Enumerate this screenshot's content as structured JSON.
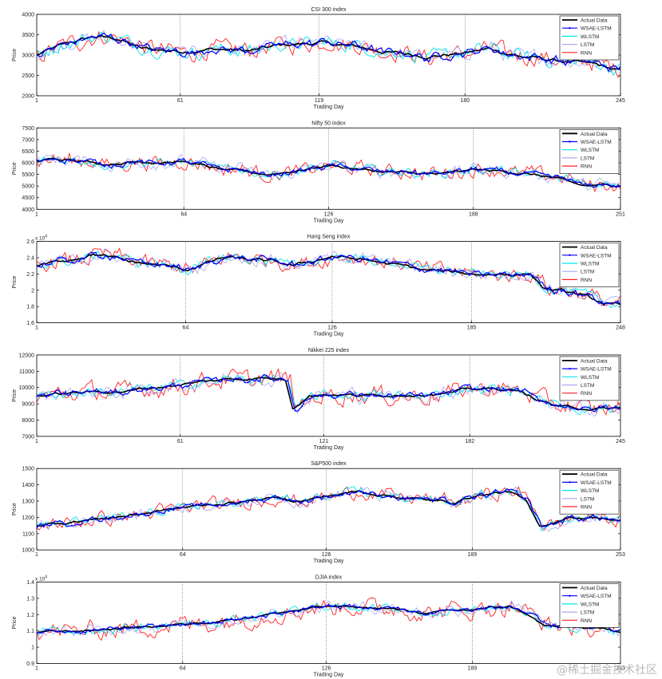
{
  "series_styles": [
    {
      "name": "Actual Data",
      "color": "#000000"
    },
    {
      "name": "WSAE-LSTM",
      "color": "#0000ff"
    },
    {
      "name": "WLSTM",
      "color": "#00e5ee"
    },
    {
      "name": "LSTM",
      "color": "#a9a6f5"
    },
    {
      "name": "RNN",
      "color": "#ff2020"
    }
  ],
  "watermark": "@稀土掘金技术社区",
  "chart_data": [
    {
      "type": "line",
      "title": "CSI 300 index",
      "xlabel": "Trading Day",
      "ylabel": "Price",
      "x_range": [
        1,
        245
      ],
      "xticks": [
        1,
        61,
        119,
        180,
        245
      ],
      "ylim": [
        2000,
        4000
      ],
      "yticks": [
        "2000",
        "2500",
        "3000",
        "3500",
        "4000"
      ],
      "exponent": "",
      "legend_position": "top-right",
      "series": [
        "Actual Data",
        "WSAE-LSTM",
        "WLSTM",
        "LSTM",
        "RNN"
      ],
      "anchors": [
        [
          1,
          3000
        ],
        [
          15,
          3300
        ],
        [
          25,
          3450
        ],
        [
          35,
          3400
        ],
        [
          45,
          3150
        ],
        [
          61,
          3100
        ],
        [
          75,
          3150
        ],
        [
          90,
          3100
        ],
        [
          105,
          3250
        ],
        [
          119,
          3300
        ],
        [
          135,
          3200
        ],
        [
          150,
          3050
        ],
        [
          165,
          2980
        ],
        [
          180,
          3050
        ],
        [
          190,
          3150
        ],
        [
          205,
          2950
        ],
        [
          220,
          2850
        ],
        [
          235,
          2750
        ],
        [
          245,
          2600
        ]
      ],
      "noise": [
        70,
        100,
        170,
        170,
        220
      ]
    },
    {
      "type": "line",
      "title": "Nifty 50 index",
      "xlabel": "Trading Day",
      "ylabel": "Price",
      "x_range": [
        1,
        251
      ],
      "xticks": [
        1,
        64,
        126,
        188,
        251
      ],
      "ylim": [
        4000,
        7500
      ],
      "yticks": [
        "4000",
        "4500",
        "5000",
        "5500",
        "6000",
        "6500",
        "7000",
        "7500"
      ],
      "exponent": "",
      "legend_position": "top-right",
      "series": [
        "Actual Data",
        "WSAE-LSTM",
        "WLSTM",
        "LSTM",
        "RNN"
      ],
      "anchors": [
        [
          1,
          6100
        ],
        [
          15,
          6200
        ],
        [
          30,
          5950
        ],
        [
          45,
          6050
        ],
        [
          64,
          6050
        ],
        [
          80,
          5700
        ],
        [
          100,
          5500
        ],
        [
          115,
          5700
        ],
        [
          126,
          5900
        ],
        [
          145,
          5650
        ],
        [
          160,
          5550
        ],
        [
          175,
          5500
        ],
        [
          188,
          5700
        ],
        [
          205,
          5600
        ],
        [
          220,
          5400
        ],
        [
          235,
          5000
        ],
        [
          251,
          5050
        ]
      ],
      "noise": [
        80,
        110,
        200,
        280,
        330
      ]
    },
    {
      "type": "line",
      "title": "Hang Seng index",
      "xlabel": "Trading Day",
      "ylabel": "Price",
      "x_range": [
        1,
        248
      ],
      "xticks": [
        1,
        64,
        126,
        185,
        248
      ],
      "ylim": [
        1.6,
        2.6
      ],
      "yticks": [
        "1.6",
        "1.8",
        "2",
        "2.2",
        "2.4",
        "2.6"
      ],
      "exponent": "x 10^4",
      "legend_position": "top-right",
      "series": [
        "Actual Data",
        "WSAE-LSTM",
        "WLSTM",
        "LSTM",
        "RNN"
      ],
      "anchors": [
        [
          1,
          2.3
        ],
        [
          10,
          2.35
        ],
        [
          25,
          2.45
        ],
        [
          40,
          2.35
        ],
        [
          55,
          2.3
        ],
        [
          64,
          2.25
        ],
        [
          80,
          2.4
        ],
        [
          100,
          2.35
        ],
        [
          110,
          2.3
        ],
        [
          126,
          2.42
        ],
        [
          145,
          2.35
        ],
        [
          165,
          2.25
        ],
        [
          185,
          2.2
        ],
        [
          200,
          2.2
        ],
        [
          210,
          2.2
        ],
        [
          216,
          2.02
        ],
        [
          230,
          1.95
        ],
        [
          240,
          1.85
        ],
        [
          248,
          1.8
        ]
      ],
      "noise": [
        0.03,
        0.04,
        0.06,
        0.08,
        0.1
      ]
    },
    {
      "type": "line",
      "title": "Nikkei 225 index",
      "xlabel": "Trading Day",
      "ylabel": "Price",
      "x_range": [
        1,
        245
      ],
      "xticks": [
        1,
        61,
        121,
        182,
        245
      ],
      "ylim": [
        7000,
        12000
      ],
      "yticks": [
        "7000",
        "8000",
        "9000",
        "10000",
        "11000",
        "12000"
      ],
      "exponent": "",
      "legend_position": "top-right",
      "series": [
        "Actual Data",
        "WSAE-LSTM",
        "WLSTM",
        "LSTM",
        "RNN"
      ],
      "anchors": [
        [
          1,
          9500
        ],
        [
          20,
          9700
        ],
        [
          40,
          9800
        ],
        [
          61,
          10200
        ],
        [
          80,
          10500
        ],
        [
          95,
          10600
        ],
        [
          105,
          10500
        ],
        [
          108,
          8800
        ],
        [
          115,
          9500
        ],
        [
          121,
          9600
        ],
        [
          140,
          9500
        ],
        [
          160,
          9600
        ],
        [
          175,
          9700
        ],
        [
          182,
          9900
        ],
        [
          200,
          9900
        ],
        [
          208,
          9400
        ],
        [
          220,
          8800
        ],
        [
          235,
          8700
        ],
        [
          245,
          8700
        ]
      ],
      "noise": [
        120,
        200,
        320,
        450,
        600
      ]
    },
    {
      "type": "line",
      "title": "S&P500 index",
      "xlabel": "Trading Day",
      "ylabel": "Price",
      "x_range": [
        1,
        253
      ],
      "xticks": [
        1,
        64,
        126,
        189,
        253
      ],
      "ylim": [
        1000,
        1500
      ],
      "yticks": [
        "1000",
        "1100",
        "1200",
        "1300",
        "1400",
        "1500"
      ],
      "exponent": "",
      "legend_position": "top-right",
      "series": [
        "Actual Data",
        "WSAE-LSTM",
        "WLSTM",
        "LSTM",
        "RNN"
      ],
      "anchors": [
        [
          1,
          1150
        ],
        [
          20,
          1180
        ],
        [
          40,
          1210
        ],
        [
          64,
          1260
        ],
        [
          85,
          1290
        ],
        [
          105,
          1320
        ],
        [
          115,
          1300
        ],
        [
          126,
          1330
        ],
        [
          140,
          1360
        ],
        [
          160,
          1320
        ],
        [
          180,
          1290
        ],
        [
          189,
          1330
        ],
        [
          205,
          1360
        ],
        [
          212,
          1300
        ],
        [
          218,
          1140
        ],
        [
          230,
          1200
        ],
        [
          245,
          1200
        ],
        [
          253,
          1170
        ]
      ],
      "noise": [
        12,
        16,
        25,
        35,
        45
      ]
    },
    {
      "type": "line",
      "title": "DJIA index",
      "xlabel": "Trading Day",
      "ylabel": "Price",
      "x_range": [
        1,
        253
      ],
      "xticks": [
        1,
        64,
        126,
        189,
        253
      ],
      "ylim": [
        0.9,
        1.4
      ],
      "yticks": [
        "0.9",
        "1",
        "1.1",
        "1.2",
        "1.3",
        "1.4"
      ],
      "exponent": "x 10^4",
      "legend_position": "top-right",
      "series": [
        "Actual Data",
        "WSAE-LSTM",
        "WLSTM",
        "LSTM",
        "RNN"
      ],
      "anchors": [
        [
          1,
          1.09
        ],
        [
          20,
          1.1
        ],
        [
          40,
          1.12
        ],
        [
          64,
          1.14
        ],
        [
          90,
          1.18
        ],
        [
          110,
          1.22
        ],
        [
          126,
          1.25
        ],
        [
          150,
          1.24
        ],
        [
          170,
          1.21
        ],
        [
          189,
          1.23
        ],
        [
          205,
          1.25
        ],
        [
          212,
          1.21
        ],
        [
          220,
          1.13
        ],
        [
          235,
          1.12
        ],
        [
          253,
          1.1
        ]
      ],
      "noise": [
        0.01,
        0.015,
        0.025,
        0.035,
        0.06
      ]
    }
  ]
}
